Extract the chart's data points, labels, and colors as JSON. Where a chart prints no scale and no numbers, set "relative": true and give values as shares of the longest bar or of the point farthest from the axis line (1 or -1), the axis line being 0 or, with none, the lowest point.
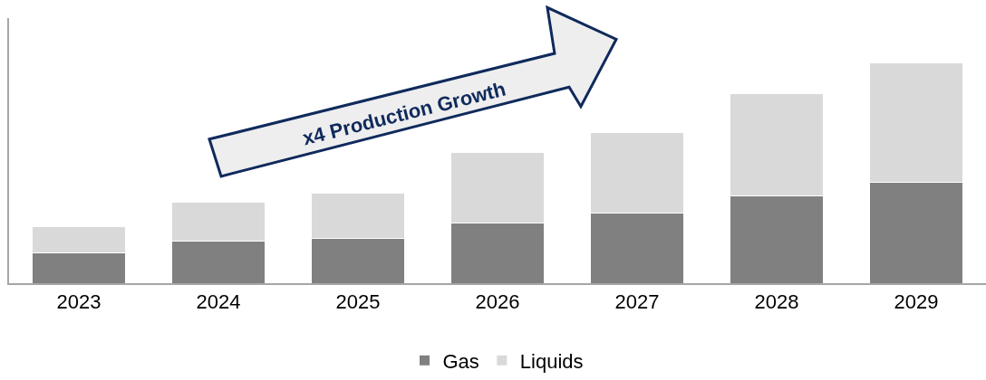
{
  "chart_data": {
    "type": "bar",
    "stacked": true,
    "relative": true,
    "categories": [
      "2023",
      "2024",
      "2025",
      "2026",
      "2027",
      "2028",
      "2029"
    ],
    "series": [
      {
        "name": "Gas",
        "color": "#808080",
        "values": [
          0.137,
          0.193,
          0.205,
          0.273,
          0.317,
          0.398,
          0.458
        ]
      },
      {
        "name": "Liquids",
        "color": "#d9d9d9",
        "values": [
          0.12,
          0.173,
          0.205,
          0.321,
          0.369,
          0.462,
          0.542
        ]
      }
    ],
    "annotations": [
      "x4 Production Growth"
    ],
    "legend": "bottom"
  }
}
